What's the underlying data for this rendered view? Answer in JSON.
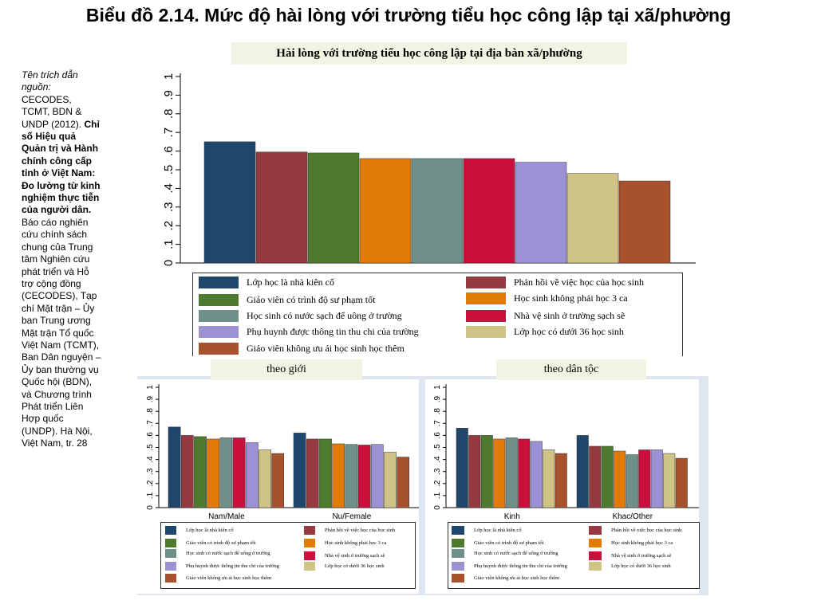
{
  "page_title": "Biểu đồ 2.14. Mức độ hài lòng với trường tiểu học công lập tại xã/phường",
  "source": {
    "label": "Tên trích dẫn nguồn:",
    "authors": "CECODES, TCMT, BDN & UNDP (2012).",
    "title": "Chỉ số Hiệu quả Quản trị và Hành chính công cấp tỉnh ở Việt Nam: Đo lường từ kinh nghiệm thực tiễn của người dân.",
    "rest": "Báo cáo nghiên cứu chính sách chung của Trung tâm Nghiên cứu phát triển và Hỗ trợ cộng đồng (CECODES), Tạp chí Mặt trận – Ủy ban Trung ương Mặt trận Tổ quốc Việt Nam (TCMT), Ban Dân nguyện – Ủy ban thường vụ Quốc hội (BDN), và Chương trình Phát triển Liên Hợp quốc (UNDP). Hà Nội, Việt Nam, tr. 28"
  },
  "series_colors": [
    "#1f466b",
    "#943a40",
    "#4e7a2e",
    "#e17b05",
    "#6f9088",
    "#c90f3c",
    "#9d91d6",
    "#cfc486",
    "#a8512d"
  ],
  "legend_labels": [
    "Lớp học là nhà kiên cố",
    "Phản hồi về việc học của học sinh",
    "Giáo viên có trình độ sư phạm tốt",
    "Học sinh không phải học 3 ca",
    "Học sinh có nước sạch để uông ở trường",
    "Nhà vệ sinh ở trường sạch sẽ",
    "Phụ huynh được thông tin thu chi của trường",
    "Lớp học có dưới 36 học sinh",
    "Giáo viên không ưu ái học sinh học thêm"
  ],
  "sub_legend_labels": [
    "Lớp học là nhà kiên cố",
    "Phản hồi về việc học của học sinh",
    "Giáo viên có trình độ sư phạm tốt",
    "Học sinh không phải học 3 ca",
    "Học sinh có nước sạch để uống ở trường",
    "Nhà vệ sinh ở trường sạch sẽ",
    "Phụ huynh được thông tin thu chi của trường",
    "Lớp học có dưới 36 học sinh",
    "Giáo viên không ưu ái học sinh học thêm"
  ],
  "chart_data": [
    {
      "type": "bar",
      "title": "Hài lòng với trường tiểu học công lập tại địa bàn xã/phường",
      "ylim": [
        0,
        1
      ],
      "yticks": [
        "0",
        ".1",
        ".2",
        ".3",
        ".4",
        ".5",
        ".6",
        ".7",
        ".8",
        ".9",
        "1"
      ],
      "grid": false,
      "legend": "bottom",
      "categories": [
        ""
      ],
      "series": [
        {
          "name": "Lớp học là nhà kiên cố",
          "values": [
            0.65
          ]
        },
        {
          "name": "Phản hồi về việc học của học sinh",
          "values": [
            0.595
          ]
        },
        {
          "name": "Giáo viên có trình độ sư phạm tốt",
          "values": [
            0.59
          ]
        },
        {
          "name": "Học sinh không phải học 3 ca",
          "values": [
            0.56
          ]
        },
        {
          "name": "Học sinh có nước sạch để uông ở trường",
          "values": [
            0.56
          ]
        },
        {
          "name": "Nhà vệ sinh ở trường sạch sẽ",
          "values": [
            0.56
          ]
        },
        {
          "name": "Phụ huynh được thông tin thu chi của trường",
          "values": [
            0.54
          ]
        },
        {
          "name": "Lớp học có dưới 36 học sinh",
          "values": [
            0.48
          ]
        },
        {
          "name": "Giáo viên không ưu ái học sinh học thêm",
          "values": [
            0.44
          ]
        }
      ]
    },
    {
      "type": "bar",
      "title": "theo giới",
      "ylim": [
        0,
        1
      ],
      "yticks": [
        "0",
        ".1",
        ".2",
        ".3",
        ".4",
        ".5",
        ".6",
        ".7",
        ".8",
        ".9",
        "1"
      ],
      "grid": false,
      "legend": "bottom",
      "categories": [
        "Nam/Male",
        "Nu/Female"
      ],
      "series": [
        {
          "name": "Lớp học là nhà kiên cố",
          "values": [
            0.67,
            0.62
          ]
        },
        {
          "name": "Phản hồi về việc học của học sinh",
          "values": [
            0.6,
            0.57
          ]
        },
        {
          "name": "Giáo viên có trình độ sư phạm tốt",
          "values": [
            0.59,
            0.57
          ]
        },
        {
          "name": "Học sinh không phải học 3 ca",
          "values": [
            0.57,
            0.53
          ]
        },
        {
          "name": "Học sinh có nước sạch để uống ở trường",
          "values": [
            0.58,
            0.525
          ]
        },
        {
          "name": "Nhà vệ sinh ở trường sạch sẽ",
          "values": [
            0.58,
            0.52
          ]
        },
        {
          "name": "Phụ huynh được thông tin thu chi của trường",
          "values": [
            0.54,
            0.525
          ]
        },
        {
          "name": "Lớp học có dưới 36 học sinh",
          "values": [
            0.48,
            0.46
          ]
        },
        {
          "name": "Giáo viên không ưu ái học sinh học thêm",
          "values": [
            0.45,
            0.42
          ]
        }
      ]
    },
    {
      "type": "bar",
      "title": "theo dân tộc",
      "ylim": [
        0,
        1
      ],
      "yticks": [
        "0",
        ".1",
        ".2",
        ".3",
        ".4",
        ".5",
        ".6",
        ".7",
        ".8",
        ".9",
        "1"
      ],
      "grid": false,
      "legend": "bottom",
      "categories": [
        "Kinh",
        "Khac/Other"
      ],
      "series": [
        {
          "name": "Lớp học là nhà kiên cố",
          "values": [
            0.66,
            0.6
          ]
        },
        {
          "name": "Phản hồi về việc học của học sinh",
          "values": [
            0.6,
            0.51
          ]
        },
        {
          "name": "Giáo viên có trình độ sư phạm tốt",
          "values": [
            0.6,
            0.51
          ]
        },
        {
          "name": "Học sinh không phải học 3 ca",
          "values": [
            0.57,
            0.47
          ]
        },
        {
          "name": "Học sinh có nước sạch để uống ở trường",
          "values": [
            0.58,
            0.44
          ]
        },
        {
          "name": "Nhà vệ sinh ở trường sạch sẽ",
          "values": [
            0.57,
            0.48
          ]
        },
        {
          "name": "Phụ huynh được thông tin thu chi của trường",
          "values": [
            0.55,
            0.48
          ]
        },
        {
          "name": "Lớp học có dưới 36 học sinh",
          "values": [
            0.48,
            0.45
          ]
        },
        {
          "name": "Giáo viên không ưu ái học sinh học thêm",
          "values": [
            0.45,
            0.41
          ]
        }
      ]
    }
  ]
}
